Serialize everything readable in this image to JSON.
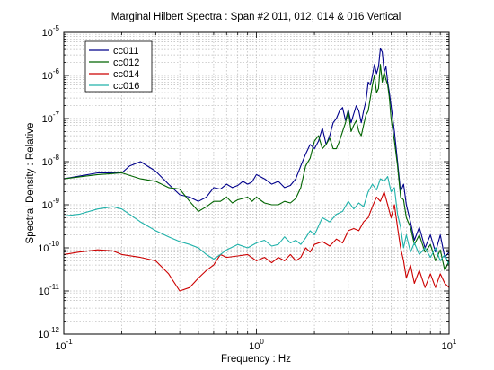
{
  "chart_data": {
    "type": "line",
    "title": "Marginal Hilbert Spectra : Span #2 011, 012, 014 & 016 Vertical",
    "xlabel": "Frequency : Hz",
    "ylabel": "Spectral Density : Relative",
    "xscale": "log",
    "yscale": "log",
    "xlim": [
      0.1,
      10
    ],
    "ylim": [
      1e-12,
      1e-05
    ],
    "grid": true,
    "legend_position": "top-left",
    "x_ticks": [
      {
        "value": 0.1,
        "base": "10",
        "exp": "-1"
      },
      {
        "value": 1,
        "base": "10",
        "exp": "0"
      },
      {
        "value": 10,
        "base": "10",
        "exp": "1"
      }
    ],
    "y_ticks": [
      {
        "value": 1e-12,
        "base": "10",
        "exp": "-12"
      },
      {
        "value": 1e-11,
        "base": "10",
        "exp": "-11"
      },
      {
        "value": 1e-10,
        "base": "10",
        "exp": "-10"
      },
      {
        "value": 1e-09,
        "base": "10",
        "exp": "-9"
      },
      {
        "value": 1e-08,
        "base": "10",
        "exp": "-8"
      },
      {
        "value": 1e-07,
        "base": "10",
        "exp": "-7"
      },
      {
        "value": 1e-06,
        "base": "10",
        "exp": "-6"
      },
      {
        "value": 1e-05,
        "base": "10",
        "exp": "-5"
      }
    ],
    "series": [
      {
        "name": "cc011",
        "color": "#00008b",
        "x": [
          0.1,
          0.15,
          0.2,
          0.22,
          0.25,
          0.3,
          0.35,
          0.4,
          0.45,
          0.5,
          0.55,
          0.6,
          0.65,
          0.7,
          0.75,
          0.8,
          0.85,
          0.9,
          0.95,
          1.0,
          1.1,
          1.2,
          1.3,
          1.4,
          1.5,
          1.6,
          1.7,
          1.8,
          1.9,
          2.0,
          2.1,
          2.2,
          2.3,
          2.4,
          2.5,
          2.6,
          2.7,
          2.8,
          2.9,
          3.0,
          3.1,
          3.2,
          3.3,
          3.4,
          3.5,
          3.6,
          3.7,
          3.8,
          3.9,
          4.0,
          4.1,
          4.2,
          4.3,
          4.4,
          4.5,
          4.6,
          4.7,
          4.8,
          4.9,
          5.0,
          5.2,
          5.4,
          5.6,
          5.8,
          6.0,
          6.3,
          6.6,
          7.0,
          7.5,
          8.0,
          8.5,
          9.0,
          9.5,
          10.0
        ],
        "y": [
          4e-09,
          5.5e-09,
          5.5e-09,
          8e-09,
          1e-08,
          6e-09,
          3e-09,
          1.7e-09,
          1.5e-09,
          1.2e-09,
          1.5e-09,
          2.5e-09,
          2.3e-09,
          3e-09,
          2.5e-09,
          2.8e-09,
          3.5e-09,
          3e-09,
          3.4e-09,
          5e-09,
          4e-09,
          3e-09,
          3.5e-09,
          2.5e-09,
          2.8e-09,
          4e-09,
          8e-09,
          1.5e-08,
          2.5e-08,
          2e-08,
          3e-08,
          6e-08,
          2.5e-08,
          4e-08,
          8e-08,
          1e-07,
          1.5e-07,
          1.8e-07,
          9e-08,
          1.6e-07,
          8e-08,
          1.3e-07,
          2e-07,
          1.5e-07,
          8e-08,
          1.5e-07,
          2.5e-07,
          7e-07,
          6e-07,
          1e-06,
          1.8e-06,
          1.1e-06,
          1.6e-06,
          4.2e-06,
          3.5e-06,
          1.2e-06,
          1.6e-06,
          7e-07,
          4e-07,
          2e-07,
          5e-08,
          1e-08,
          2e-09,
          3e-09,
          1e-09,
          4e-10,
          1.5e-10,
          3e-10,
          1e-10,
          2e-10,
          8e-11,
          2e-10,
          6e-11,
          8e-11
        ]
      },
      {
        "name": "cc012",
        "color": "#006400",
        "x": [
          0.1,
          0.15,
          0.2,
          0.25,
          0.3,
          0.35,
          0.4,
          0.45,
          0.5,
          0.55,
          0.6,
          0.65,
          0.7,
          0.75,
          0.8,
          0.85,
          0.9,
          0.95,
          1.0,
          1.1,
          1.2,
          1.3,
          1.4,
          1.5,
          1.6,
          1.7,
          1.8,
          1.9,
          2.0,
          2.1,
          2.2,
          2.3,
          2.4,
          2.5,
          2.6,
          2.7,
          2.8,
          2.9,
          3.0,
          3.1,
          3.2,
          3.3,
          3.4,
          3.5,
          3.6,
          3.7,
          3.8,
          3.9,
          4.0,
          4.1,
          4.2,
          4.3,
          4.4,
          4.5,
          4.6,
          4.7,
          4.8,
          4.9,
          5.0,
          5.2,
          5.4,
          5.6,
          5.8,
          6.0,
          6.3,
          6.6,
          7.0,
          7.5,
          8.0,
          8.5,
          9.0,
          9.5,
          10.0
        ],
        "y": [
          4e-09,
          5e-09,
          5.5e-09,
          4e-09,
          3.5e-09,
          2.5e-09,
          2.3e-09,
          1.2e-09,
          7e-10,
          9e-10,
          1.2e-09,
          1.2e-09,
          1.5e-09,
          1.1e-09,
          1.3e-09,
          1.4e-09,
          1.5e-09,
          1.2e-09,
          1.5e-09,
          1.1e-09,
          1e-09,
          1e-09,
          1.2e-09,
          1.1e-09,
          1.4e-09,
          2.5e-09,
          8e-09,
          1.2e-08,
          3e-08,
          4e-08,
          2e-08,
          2.5e-08,
          3.5e-08,
          2e-08,
          2e-08,
          3e-08,
          5e-08,
          8e-08,
          1.5e-07,
          5e-08,
          7e-08,
          9e-08,
          5e-08,
          4e-08,
          7e-08,
          1.2e-07,
          1.5e-07,
          3e-07,
          6e-07,
          1e-06,
          4e-07,
          5e-07,
          1.8e-06,
          7e-07,
          1.2e-06,
          8e-07,
          6e-07,
          3e-07,
          1e-07,
          3e-08,
          8e-09,
          1.5e-09,
          1.3e-09,
          5e-10,
          3e-10,
          1.2e-10,
          2e-10,
          8e-11,
          1.2e-10,
          5e-11,
          9e-11,
          3e-11,
          5e-11
        ]
      },
      {
        "name": "cc014",
        "color": "#cc0000",
        "x": [
          0.1,
          0.12,
          0.15,
          0.18,
          0.2,
          0.25,
          0.3,
          0.35,
          0.4,
          0.45,
          0.5,
          0.55,
          0.6,
          0.65,
          0.7,
          0.8,
          0.9,
          1.0,
          1.1,
          1.2,
          1.3,
          1.4,
          1.5,
          1.6,
          1.7,
          1.8,
          1.9,
          2.0,
          2.2,
          2.4,
          2.6,
          2.8,
          3.0,
          3.2,
          3.4,
          3.6,
          3.8,
          4.0,
          4.2,
          4.4,
          4.6,
          4.8,
          5.0,
          5.2,
          5.4,
          5.6,
          5.8,
          6.0,
          6.3,
          6.6,
          7.0,
          7.5,
          8.0,
          8.5,
          9.0,
          9.5,
          10.0
        ],
        "y": [
          7e-11,
          8e-11,
          9e-11,
          8.5e-11,
          7e-11,
          6e-11,
          5e-11,
          2.5e-11,
          1e-11,
          1.2e-11,
          2e-11,
          3e-11,
          4e-11,
          7e-11,
          6e-11,
          6.5e-11,
          7e-11,
          5e-11,
          6e-11,
          4.5e-11,
          6e-11,
          5e-11,
          7e-11,
          5e-11,
          6e-11,
          1e-10,
          8e-11,
          1.2e-10,
          1.4e-10,
          1.1e-10,
          1.6e-10,
          1.3e-10,
          2.5e-10,
          2.8e-10,
          2.5e-10,
          4e-10,
          5e-10,
          9e-10,
          1.5e-09,
          1.2e-09,
          2e-09,
          1e-09,
          5e-10,
          1e-09,
          3e-10,
          1e-10,
          5e-11,
          2e-11,
          4e-11,
          1.5e-11,
          3e-11,
          1.2e-11,
          2.5e-11,
          1.2e-11,
          2.5e-11,
          1.5e-11,
          1.2e-11
        ]
      },
      {
        "name": "cc016",
        "color": "#20b2aa",
        "x": [
          0.1,
          0.12,
          0.15,
          0.18,
          0.2,
          0.25,
          0.3,
          0.35,
          0.4,
          0.45,
          0.5,
          0.55,
          0.6,
          0.65,
          0.7,
          0.8,
          0.9,
          1.0,
          1.1,
          1.2,
          1.3,
          1.4,
          1.5,
          1.6,
          1.7,
          1.8,
          1.9,
          2.0,
          2.2,
          2.4,
          2.6,
          2.8,
          3.0,
          3.2,
          3.4,
          3.6,
          3.8,
          4.0,
          4.2,
          4.4,
          4.6,
          4.8,
          5.0,
          5.2,
          5.4,
          5.6,
          5.8,
          6.0,
          6.3,
          6.6,
          7.0,
          7.5,
          8.0,
          8.5,
          9.0,
          9.5,
          10.0
        ],
        "y": [
          5.5e-10,
          6e-10,
          8e-10,
          9e-10,
          8e-10,
          4e-10,
          2.5e-10,
          1.8e-10,
          1.4e-10,
          1.2e-10,
          1e-10,
          7e-11,
          5.5e-11,
          7e-11,
          9e-11,
          1.2e-10,
          1e-10,
          1.3e-10,
          1.5e-10,
          1.1e-10,
          1.2e-10,
          1.8e-10,
          1.3e-10,
          1.5e-10,
          1.2e-10,
          1.7e-10,
          2.5e-10,
          2e-10,
          5e-10,
          4e-10,
          6e-10,
          7e-10,
          1.2e-09,
          8e-10,
          1.1e-09,
          9e-10,
          2e-09,
          3e-09,
          2.2e-09,
          4e-09,
          3.5e-09,
          4.5e-09,
          2e-09,
          2.5e-09,
          6e-10,
          3e-10,
          1e-10,
          2e-10,
          8e-11,
          1.3e-10,
          7e-11,
          1e-10,
          6e-11,
          1e-10,
          5e-11,
          7e-11,
          4e-11
        ]
      }
    ]
  }
}
